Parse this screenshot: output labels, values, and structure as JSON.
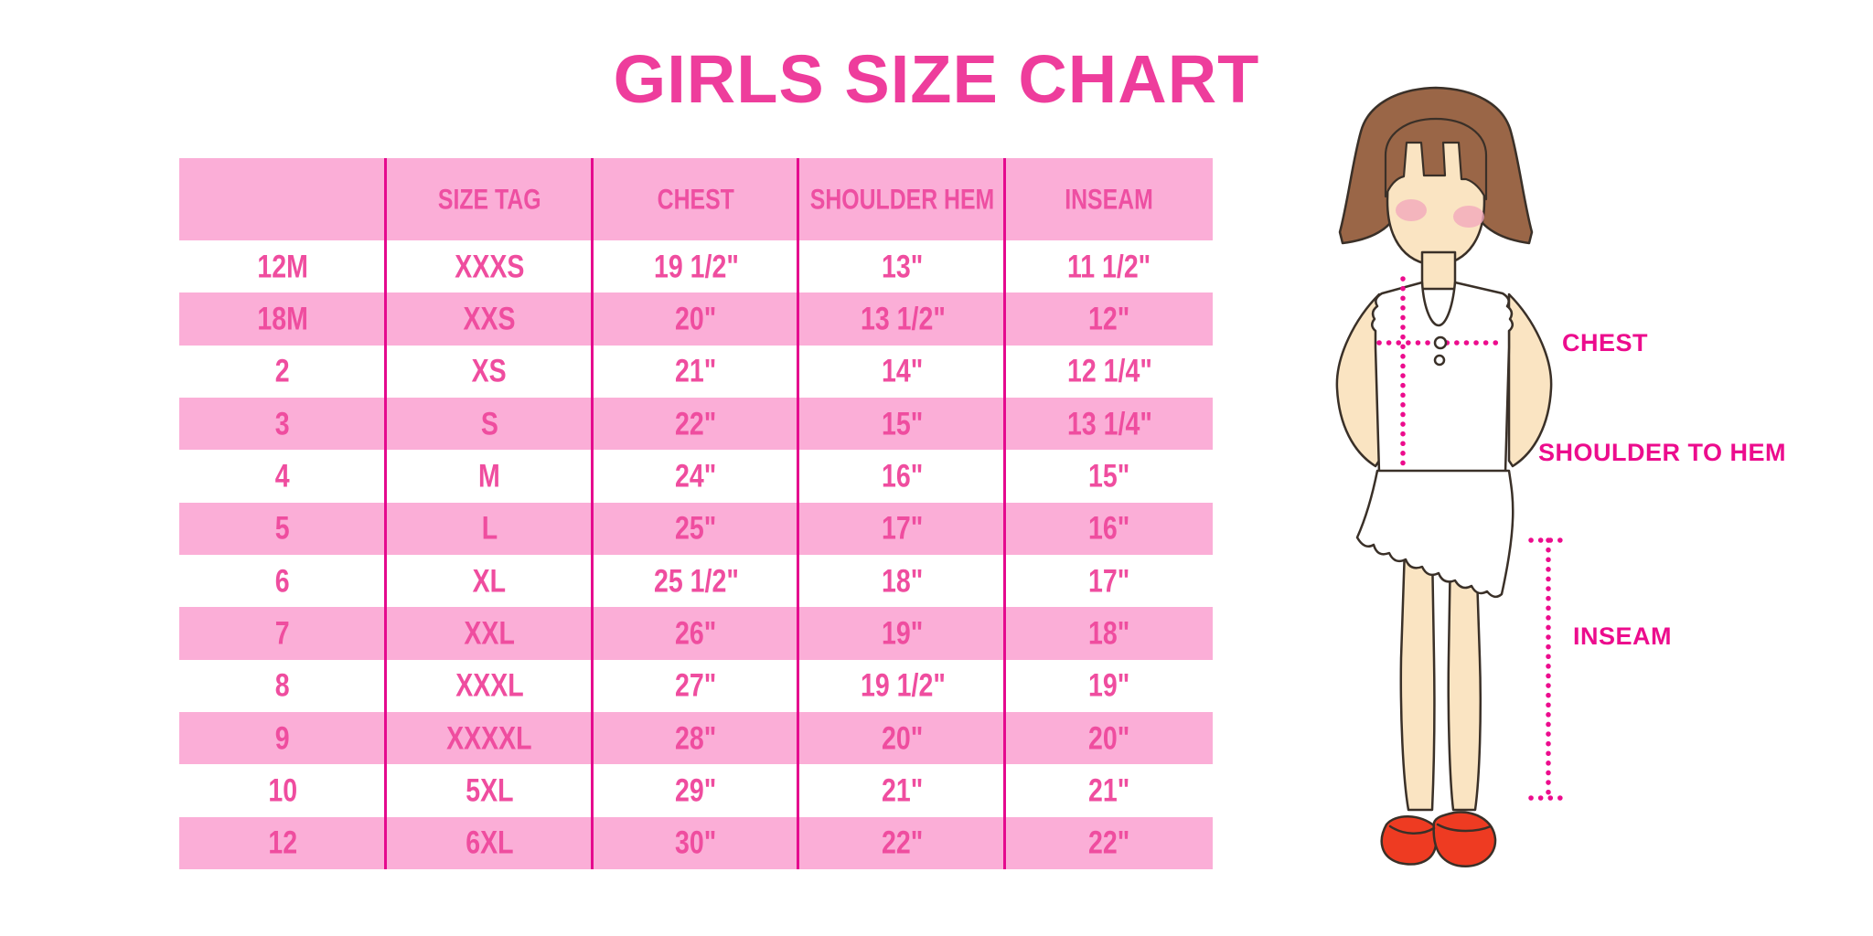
{
  "title": "GIRLS SIZE CHART",
  "colors": {
    "title_pink": "#EE3D9C",
    "row_pink": "#FBAED7",
    "divider_magenta": "#E50A8E",
    "cell_text_pink": "#EF4D9F",
    "label_magenta": "#EC0C8D",
    "hair_brown": "#9A6647",
    "skin_tan": "#FAE4C2",
    "shoe_red": "#EE3B22"
  },
  "chart_data": {
    "type": "table",
    "title": "GIRLS SIZE CHART",
    "columns": [
      "",
      "SIZE TAG",
      "CHEST",
      "SHOULDER HEM",
      "INSEAM"
    ],
    "rows": [
      [
        "12M",
        "XXXS",
        "19 1/2\"",
        "13\"",
        "11 1/2\""
      ],
      [
        "18M",
        "XXS",
        "20\"",
        "13 1/2\"",
        "12\""
      ],
      [
        "2",
        "XS",
        "21\"",
        "14\"",
        "12 1/4\""
      ],
      [
        "3",
        "S",
        "22\"",
        "15\"",
        "13 1/4\""
      ],
      [
        "4",
        "M",
        "24\"",
        "16\"",
        "15\""
      ],
      [
        "5",
        "L",
        "25\"",
        "17\"",
        "16\""
      ],
      [
        "6",
        "XL",
        "25 1/2\"",
        "18\"",
        "17\""
      ],
      [
        "7",
        "XXL",
        "26\"",
        "19\"",
        "18\""
      ],
      [
        "8",
        "XXXL",
        "27\"",
        "19 1/2\"",
        "19\""
      ],
      [
        "9",
        "XXXXL",
        "28\"",
        "20\"",
        "20\""
      ],
      [
        "10",
        "5XL",
        "29\"",
        "21\"",
        "21\""
      ],
      [
        "12",
        "6XL",
        "30\"",
        "22\"",
        "22\""
      ]
    ],
    "row_striping": "white/pink alternating starting white",
    "legend_position": "none",
    "grid": "magenta column dividers only"
  },
  "diagram": {
    "labels": {
      "chest": "CHEST",
      "shoulder_to_hem": "SHOULDER TO HEM",
      "inseam": "INSEAM"
    }
  }
}
